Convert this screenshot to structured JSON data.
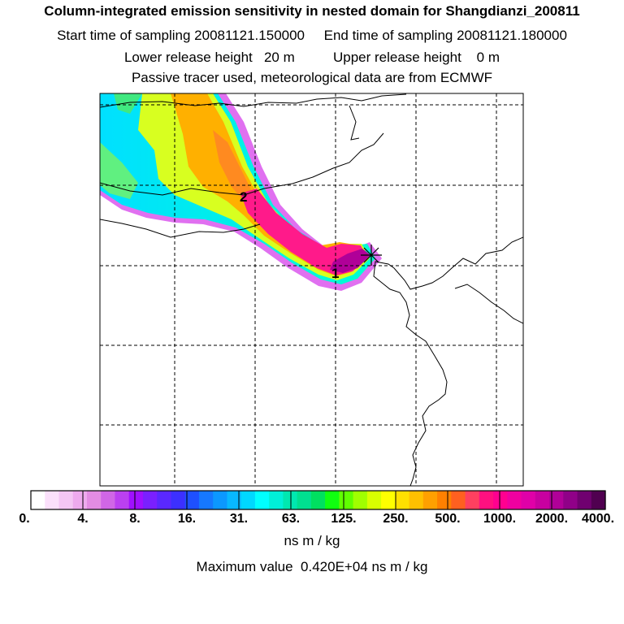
{
  "header": {
    "title": "Column-integrated emission sensitivity in nested domain for Shangdianzi_200811",
    "sampling_line": "Start time of sampling 20081121.150000     End time of sampling 20081121.180000",
    "height_line": "Lower release height   20 m          Upper release height    0 m",
    "info_line": "Passive tracer used, meteorological data are from ECMWF"
  },
  "map": {
    "point_labels": [
      "1",
      "2"
    ]
  },
  "colorbar": {
    "tick_labels": [
      "0.",
      "4.",
      "8.",
      "16.",
      "31.",
      "63.",
      "125.",
      "250.",
      "500.",
      "1000.",
      "2000.",
      "4000."
    ],
    "unit": "ns m / kg",
    "colors": [
      "#ffffff",
      "#fbe0fb",
      "#f4c6f4",
      "#eeaaee",
      "#e38ce3",
      "#d066e6",
      "#bb40f0",
      "#a010ff",
      "#7a20ff",
      "#5a28ff",
      "#3c30ff",
      "#1e50ff",
      "#1678ff",
      "#0c98ff",
      "#08b8ff",
      "#00d8ff",
      "#00ffff",
      "#00f0d8",
      "#00e8b0",
      "#00e090",
      "#00e060",
      "#10ff10",
      "#60ff00",
      "#a0ff00",
      "#d8ff00",
      "#ffff00",
      "#ffe000",
      "#ffc000",
      "#ffa000",
      "#ff8000",
      "#ff6020",
      "#ff4060",
      "#ff1080",
      "#ff0090",
      "#f000a0",
      "#e000a8",
      "#c800a0",
      "#b00098",
      "#900088",
      "#700070",
      "#500050"
    ]
  },
  "footer": {
    "max_value_line": "Maximum value  0.420E+04 ns m / kg"
  }
}
